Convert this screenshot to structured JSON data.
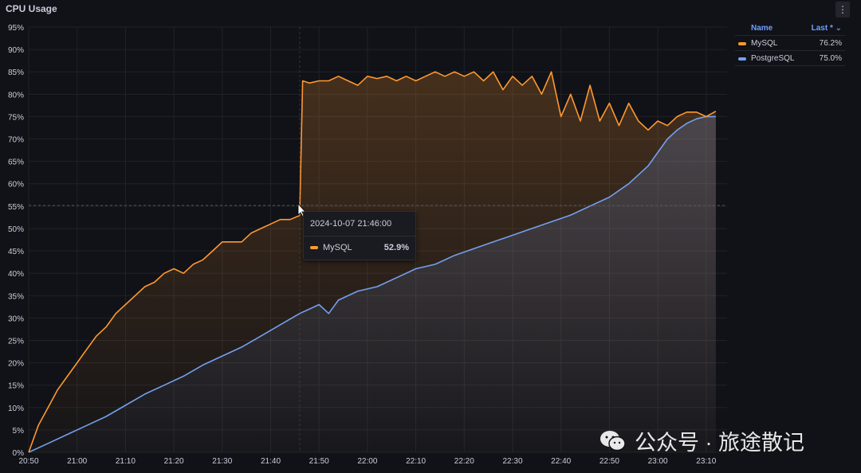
{
  "panel": {
    "title": "CPU Usage",
    "menu_icon": "vertical-ellipsis"
  },
  "legend": {
    "col_name": "Name",
    "col_last": "Last * ⌄",
    "items": [
      {
        "name": "MySQL",
        "last": "76.2%",
        "color": "#ff9830"
      },
      {
        "name": "PostgreSQL",
        "last": "75.0%",
        "color": "#73a0f0"
      }
    ]
  },
  "tooltip": {
    "time": "2024-10-07 21:46:00",
    "series": "MySQL",
    "value": "52.9%",
    "color": "#ff9830"
  },
  "watermark": {
    "text": "公众号 · 旅途散记",
    "icon": "wechat-icon"
  },
  "chart_data": {
    "type": "line",
    "title": "CPU Usage",
    "x_unit": "minutes since 20:50",
    "xlim": [
      0,
      144
    ],
    "ylim": [
      0,
      95
    ],
    "grid": true,
    "legend_position": "right",
    "x_ticks": [
      {
        "min": 0,
        "label": "20:50"
      },
      {
        "min": 10,
        "label": "21:00"
      },
      {
        "min": 20,
        "label": "21:10"
      },
      {
        "min": 30,
        "label": "21:20"
      },
      {
        "min": 40,
        "label": "21:30"
      },
      {
        "min": 50,
        "label": "21:40"
      },
      {
        "min": 60,
        "label": "21:50"
      },
      {
        "min": 70,
        "label": "22:00"
      },
      {
        "min": 80,
        "label": "22:10"
      },
      {
        "min": 90,
        "label": "22:20"
      },
      {
        "min": 100,
        "label": "22:30"
      },
      {
        "min": 110,
        "label": "22:40"
      },
      {
        "min": 120,
        "label": "22:50"
      },
      {
        "min": 130,
        "label": "23:00"
      },
      {
        "min": 140,
        "label": "23:10"
      }
    ],
    "y_ticks": [
      0,
      5,
      10,
      15,
      20,
      25,
      30,
      35,
      40,
      45,
      50,
      55,
      60,
      65,
      70,
      75,
      80,
      85,
      90,
      95
    ],
    "y_tick_suffix": "%",
    "series": [
      {
        "name": "MySQL",
        "color": "#ff9830",
        "points": [
          [
            0,
            0
          ],
          [
            2,
            6
          ],
          [
            4,
            10
          ],
          [
            6,
            14
          ],
          [
            8,
            17
          ],
          [
            10,
            20
          ],
          [
            12,
            23
          ],
          [
            14,
            26
          ],
          [
            16,
            28
          ],
          [
            18,
            31
          ],
          [
            20,
            33
          ],
          [
            22,
            35
          ],
          [
            24,
            37
          ],
          [
            26,
            38
          ],
          [
            28,
            40
          ],
          [
            30,
            41
          ],
          [
            32,
            40
          ],
          [
            34,
            42
          ],
          [
            36,
            43
          ],
          [
            38,
            45
          ],
          [
            40,
            47
          ],
          [
            42,
            47
          ],
          [
            44,
            47
          ],
          [
            46,
            49
          ],
          [
            48,
            50
          ],
          [
            50,
            51
          ],
          [
            52,
            52
          ],
          [
            54,
            52
          ],
          [
            56,
            52.9
          ],
          [
            56.6,
            83
          ],
          [
            58,
            82.5
          ],
          [
            60,
            83
          ],
          [
            62,
            83
          ],
          [
            64,
            84
          ],
          [
            66,
            83
          ],
          [
            68,
            82
          ],
          [
            70,
            84
          ],
          [
            72,
            83.5
          ],
          [
            74,
            84
          ],
          [
            76,
            83
          ],
          [
            78,
            84
          ],
          [
            80,
            83
          ],
          [
            82,
            84
          ],
          [
            84,
            85
          ],
          [
            86,
            84
          ],
          [
            88,
            85
          ],
          [
            90,
            84
          ],
          [
            92,
            85
          ],
          [
            94,
            83
          ],
          [
            96,
            85
          ],
          [
            98,
            81
          ],
          [
            100,
            84
          ],
          [
            102,
            82
          ],
          [
            104,
            84
          ],
          [
            106,
            80
          ],
          [
            108,
            85
          ],
          [
            110,
            75
          ],
          [
            112,
            80
          ],
          [
            114,
            74
          ],
          [
            116,
            82
          ],
          [
            118,
            74
          ],
          [
            120,
            78
          ],
          [
            122,
            73
          ],
          [
            124,
            78
          ],
          [
            126,
            74
          ],
          [
            128,
            72
          ],
          [
            130,
            74
          ],
          [
            132,
            73
          ],
          [
            134,
            75
          ],
          [
            136,
            76
          ],
          [
            138,
            76
          ],
          [
            140,
            75
          ],
          [
            142,
            76.2
          ]
        ]
      },
      {
        "name": "PostgreSQL",
        "color": "#73a0f0",
        "points": [
          [
            0,
            0
          ],
          [
            4,
            2
          ],
          [
            8,
            4
          ],
          [
            12,
            6
          ],
          [
            16,
            8
          ],
          [
            20,
            10.5
          ],
          [
            24,
            13
          ],
          [
            28,
            15
          ],
          [
            32,
            17
          ],
          [
            36,
            19.5
          ],
          [
            40,
            21.5
          ],
          [
            44,
            23.5
          ],
          [
            48,
            26
          ],
          [
            52,
            28.5
          ],
          [
            56,
            31
          ],
          [
            58,
            32
          ],
          [
            60,
            33
          ],
          [
            62,
            31
          ],
          [
            64,
            34
          ],
          [
            68,
            36
          ],
          [
            72,
            37
          ],
          [
            76,
            39
          ],
          [
            80,
            41
          ],
          [
            84,
            42
          ],
          [
            88,
            44
          ],
          [
            92,
            45.5
          ],
          [
            96,
            47
          ],
          [
            100,
            48.5
          ],
          [
            104,
            50
          ],
          [
            108,
            51.5
          ],
          [
            112,
            53
          ],
          [
            116,
            55
          ],
          [
            120,
            57
          ],
          [
            124,
            60
          ],
          [
            128,
            64
          ],
          [
            130,
            67
          ],
          [
            132,
            70
          ],
          [
            134,
            72
          ],
          [
            136,
            73.5
          ],
          [
            138,
            74.5
          ],
          [
            140,
            75
          ],
          [
            142,
            75
          ]
        ]
      }
    ]
  }
}
